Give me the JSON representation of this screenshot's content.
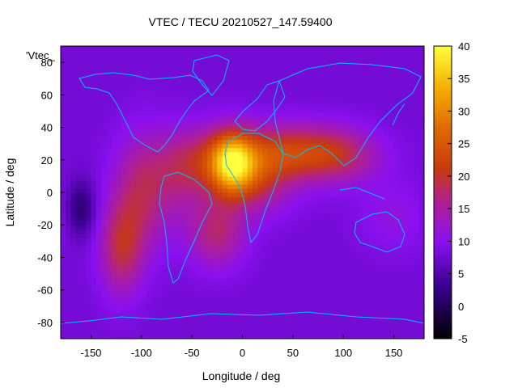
{
  "chart_data": {
    "type": "heatmap",
    "title": "VTEC / TECU 20210527_147.59400",
    "xlabel": "Longitude / deg",
    "ylabel": "Latitude / deg",
    "legend_label": "'Vtec_",
    "xlim": [
      -180,
      180
    ],
    "ylim": [
      -90,
      90
    ],
    "xticks": [
      -150,
      -100,
      -50,
      0,
      50,
      100,
      150
    ],
    "yticks": [
      -80,
      -60,
      -40,
      -20,
      0,
      20,
      40,
      60,
      80
    ],
    "colorbar": {
      "range": [
        -5,
        40
      ],
      "ticks": [
        -5,
        0,
        5,
        10,
        15,
        20,
        25,
        30,
        35,
        40
      ],
      "palette": "black-blue-purple-red-orange-yellow"
    },
    "background_level": 8,
    "anomalies": [
      {
        "lon": -10,
        "lat": 18,
        "amp": 20,
        "sx": 15,
        "sy": 13
      },
      {
        "lon": -20,
        "lat": 20,
        "amp": 10,
        "sx": 35,
        "sy": 14
      },
      {
        "lon": 45,
        "lat": 25,
        "amp": 11,
        "sx": 35,
        "sy": 12
      },
      {
        "lon": 95,
        "lat": 23,
        "amp": 9,
        "sx": 30,
        "sy": 12
      },
      {
        "lon": 15,
        "lat": 5,
        "amp": 7,
        "sx": 25,
        "sy": 14
      },
      {
        "lon": -100,
        "lat": 0,
        "amp": 9,
        "sx": 20,
        "sy": 25
      },
      {
        "lon": -120,
        "lat": -35,
        "amp": 10,
        "sx": 15,
        "sy": 20
      },
      {
        "lon": -25,
        "lat": -25,
        "amp": 9,
        "sx": 20,
        "sy": 15
      },
      {
        "lon": -60,
        "lat": 10,
        "amp": 5,
        "sx": 20,
        "sy": 20
      },
      {
        "lon": -160,
        "lat": -10,
        "amp": -7,
        "sx": 10,
        "sy": 12
      },
      {
        "lon": 150,
        "lat": -15,
        "amp": 3,
        "sx": 25,
        "sy": 15
      }
    ],
    "coastline_color": "#00bfff"
  }
}
